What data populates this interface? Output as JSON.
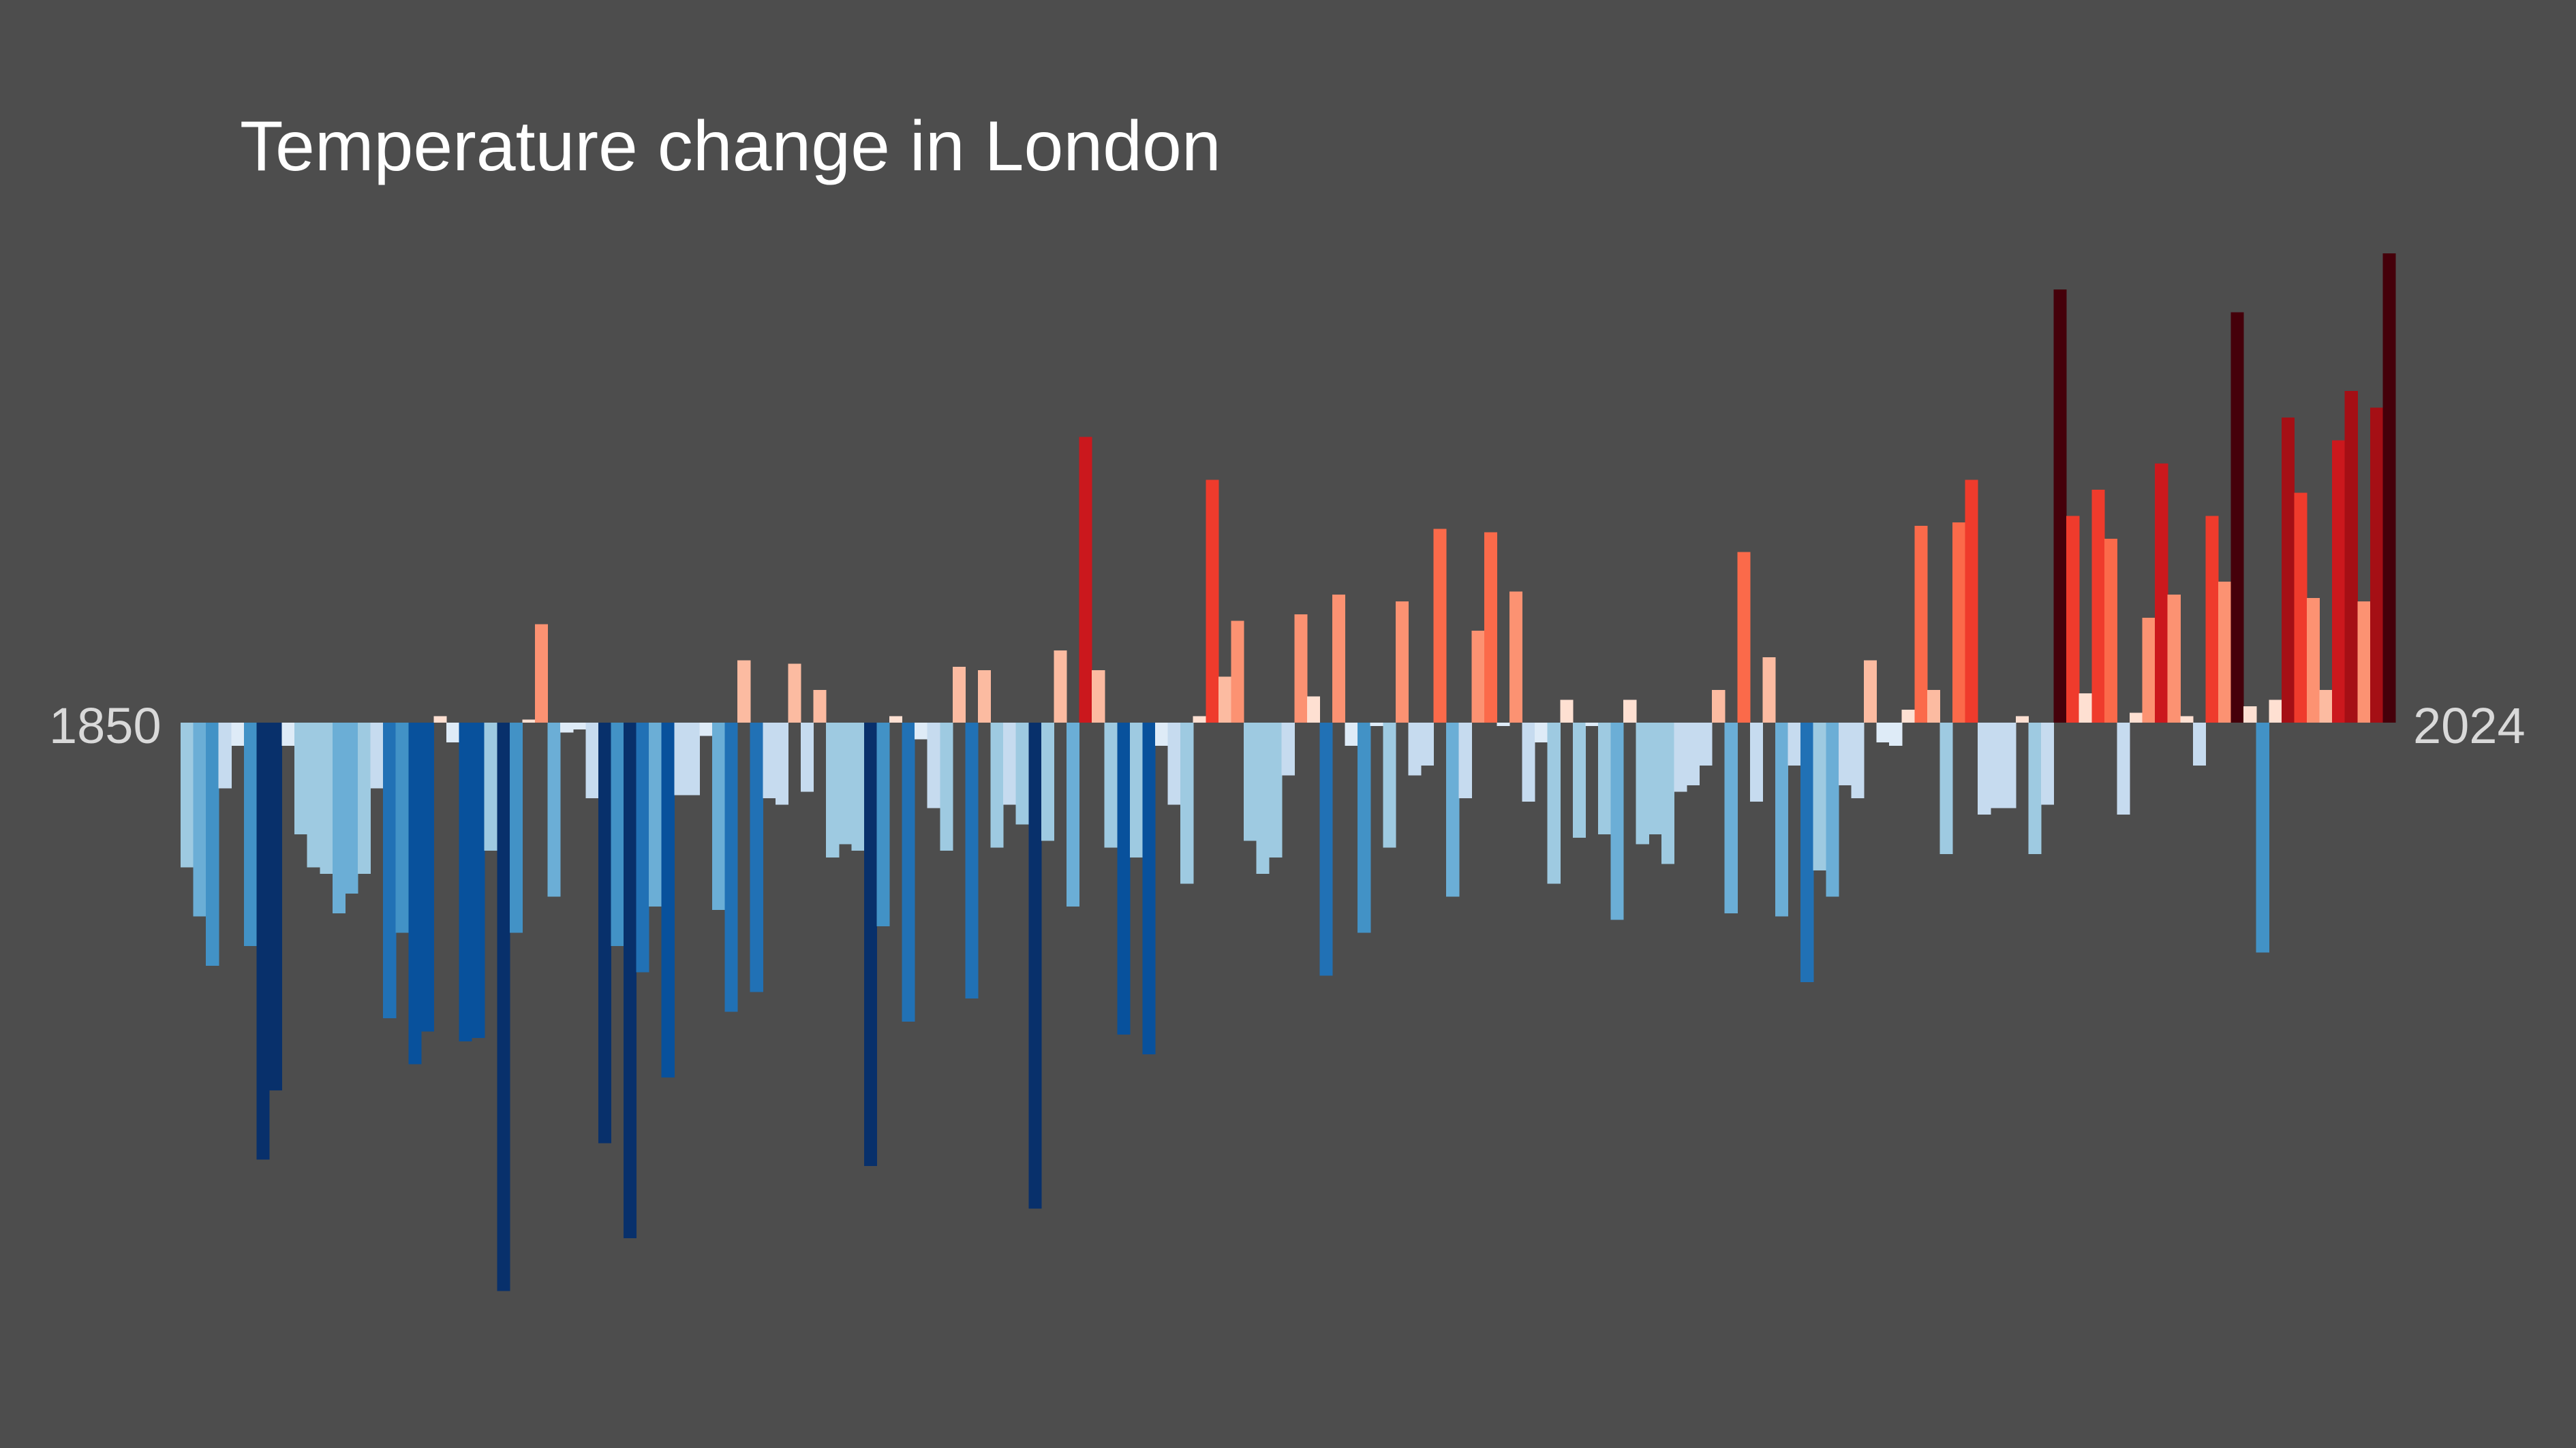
{
  "colors": {
    "background": "#4d4d4d",
    "title": "#ffffff",
    "tick_label": "#d9d9d9"
  },
  "chart_data": {
    "type": "bar",
    "title": "Temperature change in London",
    "x_tick_labels": [
      "1850",
      "2024"
    ],
    "xlim": [
      1850,
      2024
    ],
    "ylim": [
      -1.8,
      1.5
    ],
    "grid": false,
    "legend": "none",
    "values": [
      -0.44,
      -0.59,
      -0.74,
      -0.2,
      -0.07,
      -0.68,
      -1.33,
      -1.12,
      -0.07,
      -0.34,
      -0.44,
      -0.46,
      -0.58,
      -0.52,
      -0.46,
      -0.2,
      -0.9,
      -0.64,
      -1.04,
      -0.94,
      0.02,
      -0.06,
      -0.97,
      -0.96,
      -0.39,
      -1.73,
      -0.64,
      0.01,
      0.3,
      -0.53,
      -0.03,
      -0.02,
      -0.23,
      -1.28,
      -0.68,
      -1.57,
      -0.76,
      -0.56,
      -1.08,
      -0.22,
      -0.22,
      -0.04,
      -0.57,
      -0.88,
      0.19,
      -0.82,
      -0.23,
      -0.25,
      0.18,
      -0.21,
      0.1,
      -0.41,
      -0.37,
      -0.39,
      -1.35,
      -0.62,
      0.02,
      -0.91,
      -0.05,
      -0.26,
      -0.39,
      0.17,
      -0.84,
      0.16,
      -0.38,
      -0.25,
      -0.31,
      -1.48,
      -0.36,
      0.22,
      -0.56,
      0.87,
      0.16,
      -0.38,
      -0.95,
      -0.41,
      -1.01,
      -0.07,
      -0.25,
      -0.49,
      0.02,
      0.74,
      0.14,
      0.31,
      -0.36,
      -0.46,
      -0.41,
      -0.16,
      0.33,
      0.08,
      -0.77,
      0.39,
      -0.07,
      -0.64,
      -0.01,
      -0.38,
      0.37,
      -0.16,
      -0.13,
      0.59,
      -0.53,
      -0.23,
      0.28,
      0.58,
      -0.01,
      0.4,
      -0.24,
      -0.06,
      -0.49,
      0.07,
      -0.35,
      -0.01,
      -0.34,
      -0.6,
      0.07,
      -0.37,
      -0.34,
      -0.43,
      -0.21,
      -0.19,
      -0.13,
      0.1,
      -0.58,
      0.52,
      -0.24,
      0.2,
      -0.59,
      -0.13,
      -0.79,
      -0.45,
      -0.53,
      -0.19,
      -0.23,
      0.19,
      -0.06,
      -0.07,
      0.04,
      0.6,
      0.1,
      -0.4,
      0.61,
      0.74,
      -0.28,
      -0.26,
      -0.26,
      0.02,
      -0.4,
      -0.25,
      1.32,
      0.63,
      0.09,
      0.71,
      0.56,
      -0.28,
      0.03,
      0.32,
      0.79,
      0.39,
      0.02,
      -0.13,
      0.63,
      0.43,
      1.25,
      0.05,
      -0.7,
      0.07,
      0.93,
      0.7,
      0.38,
      0.1,
      0.86,
      1.01,
      0.37,
      0.96,
      1.43
    ],
    "cold_colors": [
      "#deebf7",
      "#c6dbef",
      "#9ecae1",
      "#6baed6",
      "#4292c6",
      "#2171b5",
      "#08519c",
      "#08306b"
    ],
    "warm_colors": [
      "#fee0d2",
      "#fcbba1",
      "#fc9272",
      "#fb6a4a",
      "#ef3b2c",
      "#cb181d",
      "#a50f15",
      "#45000a"
    ]
  }
}
